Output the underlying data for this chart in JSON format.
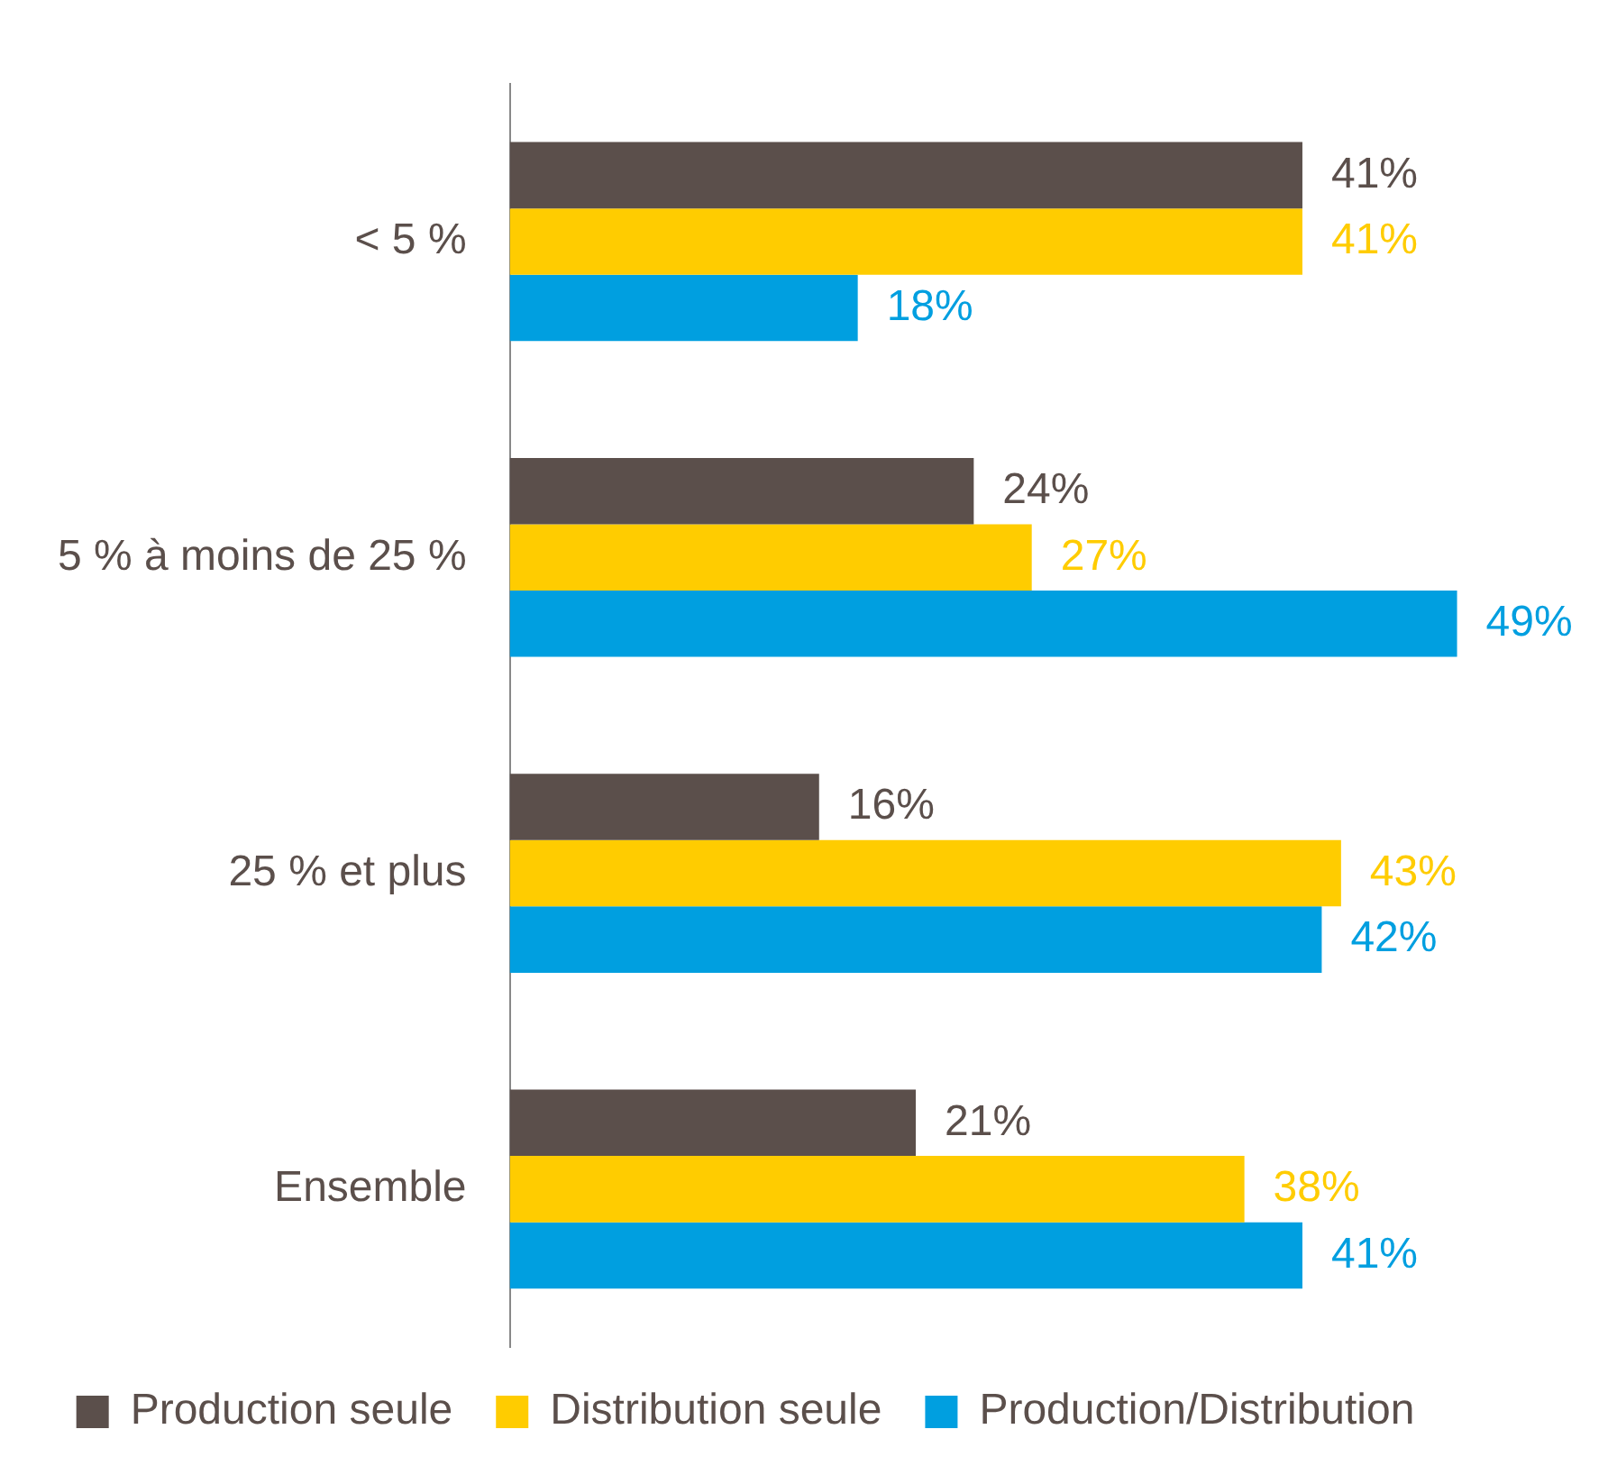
{
  "chart_data": {
    "type": "bar",
    "orientation": "horizontal",
    "categories": [
      "< 5 %",
      "5 % à moins de 25 %",
      "25 % et plus",
      "Ensemble"
    ],
    "series": [
      {
        "name": "Production seule",
        "color": "#5b4f4b",
        "values": [
          41,
          24,
          16,
          21
        ],
        "value_labels": [
          "41%",
          "24%",
          "16%",
          "21%"
        ]
      },
      {
        "name": "Distribution seule",
        "color": "#ffcc00",
        "values": [
          41,
          27,
          43,
          38
        ],
        "value_labels": [
          "41%",
          "27%",
          "43%",
          "38%"
        ]
      },
      {
        "name": "Production/Distribution",
        "color": "#009fe0",
        "values": [
          18,
          49,
          42,
          41
        ],
        "value_labels": [
          "18%",
          "49%",
          "42%",
          "41%"
        ]
      }
    ],
    "legend": "bottom",
    "grid": false,
    "tick_labels": "y"
  }
}
